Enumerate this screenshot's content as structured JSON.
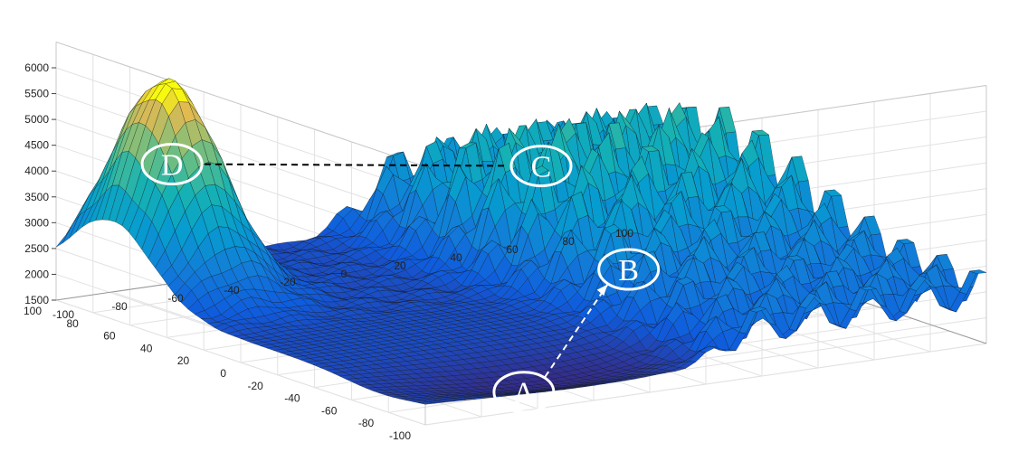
{
  "chart_data": {
    "type": "surface3d",
    "title": "",
    "xlabel": "",
    "ylabel": "",
    "zlabel": "",
    "x_ticks": [
      -100,
      -80,
      -60,
      -40,
      -20,
      0,
      20,
      40,
      60,
      80,
      100
    ],
    "y_ticks": [
      -100,
      -80,
      -60,
      -40,
      -20,
      0,
      20,
      40,
      60,
      80,
      100
    ],
    "z_ticks": [
      1500,
      2000,
      2500,
      3000,
      3500,
      4000,
      4500,
      5000,
      5500,
      6000
    ],
    "xlim": [
      -100,
      100
    ],
    "ylim": [
      -100,
      100
    ],
    "zlim": [
      1500,
      6000
    ],
    "grid": true,
    "colormap": "parula",
    "annotations": [
      {
        "label": "A",
        "x": -55,
        "y": -85,
        "z": 1600
      },
      {
        "label": "B",
        "x": 35,
        "y": -5,
        "z": 2300
      },
      {
        "label": "C",
        "x": 40,
        "y": 50,
        "z": 3600
      },
      {
        "label": "D",
        "x": -85,
        "y": 60,
        "z": 4500
      }
    ],
    "arrows": [
      {
        "from": "A",
        "to": "B",
        "style": "dashed",
        "color": "#ffffff"
      },
      {
        "from": "D",
        "to": "C",
        "style": "dashed",
        "color": "#000000"
      }
    ],
    "surface_features": [
      {
        "name": "peak",
        "x": -80,
        "y": 70,
        "z": 6000
      },
      {
        "name": "valley",
        "x": -50,
        "y": -70,
        "z": 1550
      },
      {
        "name": "ripple-field",
        "x_range": [
          10,
          100
        ],
        "y_range": [
          0,
          100
        ],
        "z_range": [
          2300,
          5100
        ]
      }
    ]
  }
}
